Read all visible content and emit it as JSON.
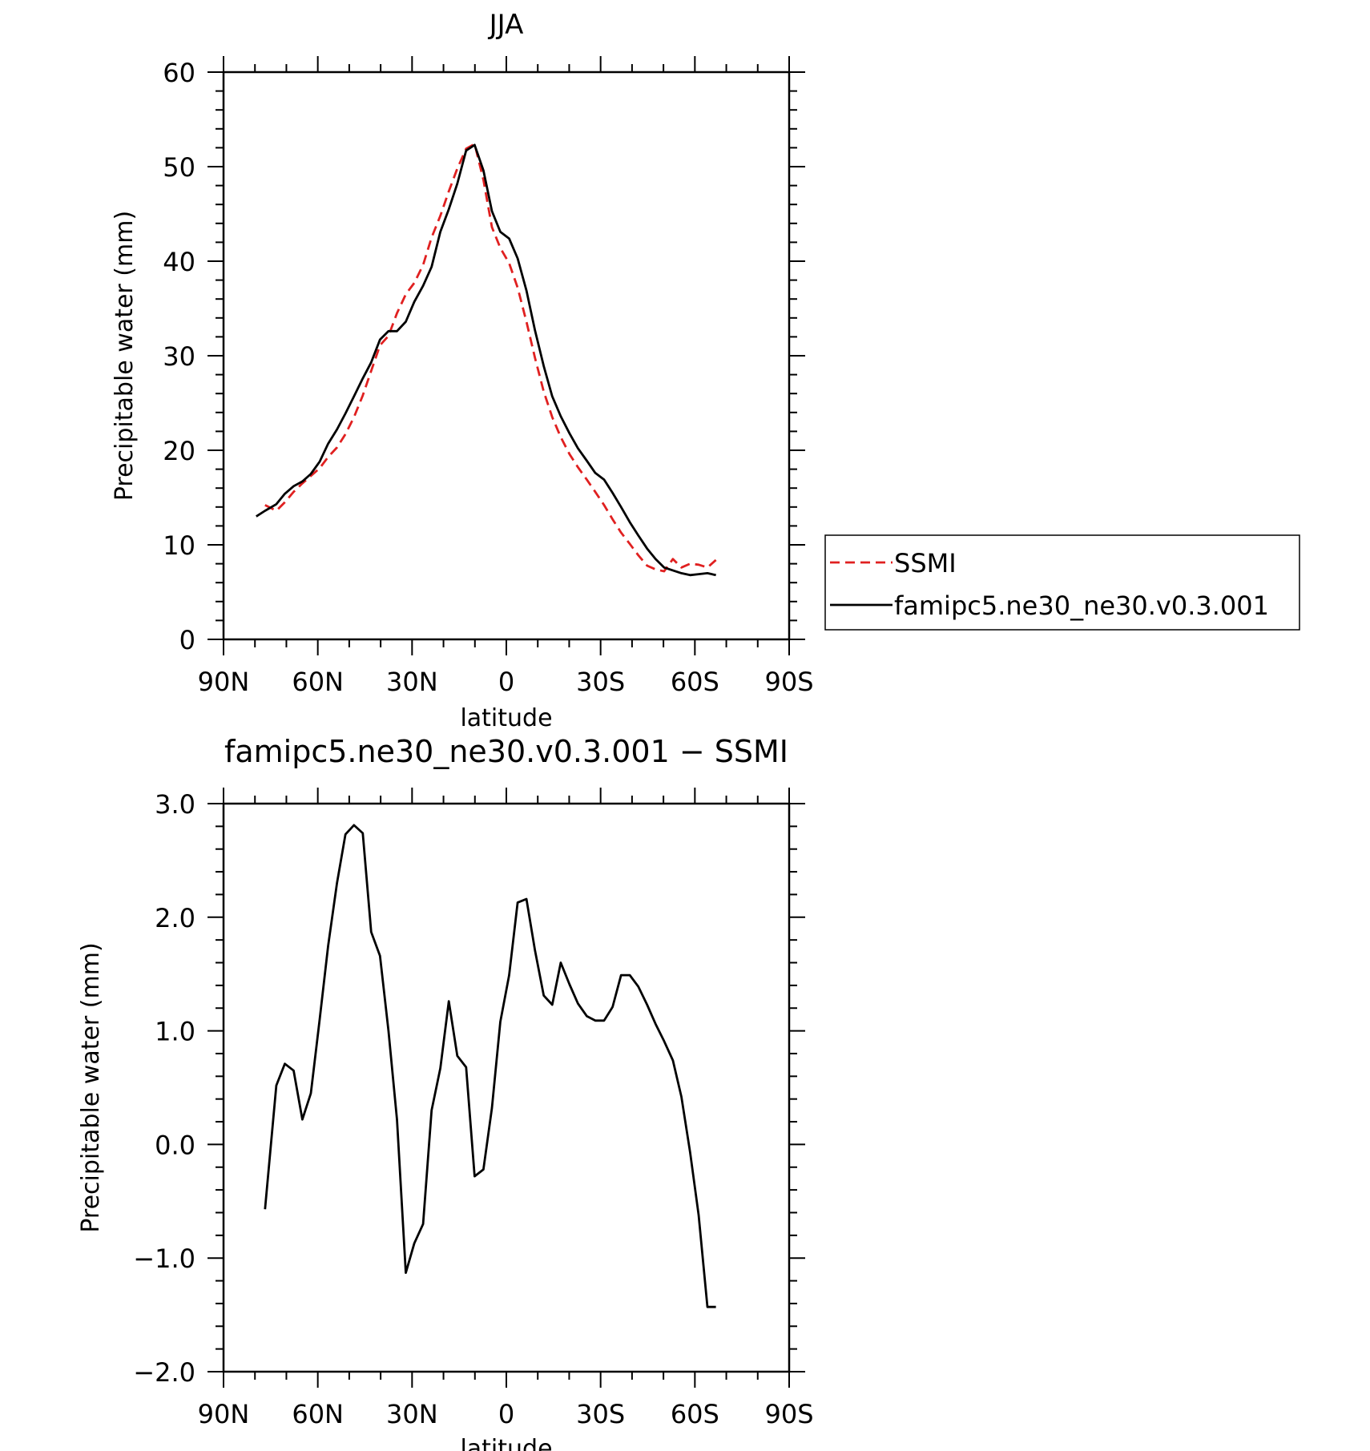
{
  "chart_data": [
    {
      "type": "line",
      "title": "JJA",
      "xlabel": "latitude",
      "ylabel": "Precipitable water (mm)",
      "x_reversed": true,
      "xlim": [
        90,
        -90
      ],
      "xticks": [
        {
          "value": 90,
          "label": "90N"
        },
        {
          "value": 60,
          "label": "60N"
        },
        {
          "value": 30,
          "label": "30N"
        },
        {
          "value": 0,
          "label": "0"
        },
        {
          "value": -30,
          "label": "30S"
        },
        {
          "value": -60,
          "label": "60S"
        },
        {
          "value": -90,
          "label": "90S"
        }
      ],
      "ylim": [
        0,
        60
      ],
      "yticks": [
        {
          "value": 0,
          "label": "0"
        },
        {
          "value": 10,
          "label": "10"
        },
        {
          "value": 20,
          "label": "20"
        },
        {
          "value": 30,
          "label": "30"
        },
        {
          "value": 40,
          "label": "40"
        },
        {
          "value": 50,
          "label": "50"
        },
        {
          "value": 60,
          "label": "60"
        }
      ],
      "legend_position": "right",
      "series": [
        {
          "name": "SSMI",
          "color": "#e02020",
          "style": "dashed",
          "x": [
            76.8,
            73.2,
            70.5,
            67.7,
            64.9,
            62.2,
            59.4,
            56.7,
            53.9,
            51.2,
            48.5,
            45.7,
            43.0,
            40.2,
            37.5,
            34.8,
            32.0,
            29.3,
            26.5,
            23.8,
            21.0,
            18.3,
            15.6,
            12.8,
            10.1,
            7.3,
            4.6,
            1.9,
            -0.9,
            -3.6,
            -6.4,
            -9.1,
            -11.9,
            -14.6,
            -17.3,
            -20.1,
            -22.8,
            -25.6,
            -28.3,
            -31.1,
            -33.8,
            -36.5,
            -39.3,
            -42.0,
            -44.8,
            -47.5,
            -50.2,
            -53.0,
            -55.7,
            -58.5,
            -61.2,
            -64.0,
            -66.7
          ],
          "y": [
            14.2,
            13.6,
            14.5,
            15.6,
            16.5,
            17.3,
            18.1,
            19.3,
            20.3,
            21.7,
            23.5,
            25.8,
            28.4,
            31.1,
            32.1,
            34.5,
            36.5,
            37.7,
            39.6,
            42.5,
            44.8,
            47.4,
            49.8,
            51.9,
            52.4,
            48.6,
            43.6,
            41.4,
            39.8,
            37.2,
            33.6,
            29.8,
            26.2,
            23.5,
            21.4,
            19.6,
            18.2,
            16.9,
            15.6,
            14.2,
            12.7,
            11.3,
            10.1,
            8.9,
            7.8,
            7.4,
            7.2,
            8.5,
            7.6,
            8.0,
            7.9,
            7.6,
            8.4
          ]
        },
        {
          "name": "famipc5.ne30_ne30.v0.3.001",
          "color": "#000000",
          "style": "solid",
          "x": [
            79.6,
            76.8,
            73.2,
            70.5,
            67.7,
            64.9,
            62.2,
            59.4,
            56.7,
            53.9,
            51.2,
            48.5,
            45.7,
            43.0,
            40.2,
            37.5,
            34.8,
            32.0,
            29.3,
            26.5,
            23.8,
            21.0,
            18.3,
            15.6,
            12.8,
            10.1,
            7.3,
            4.6,
            1.9,
            -0.9,
            -3.6,
            -6.4,
            -9.1,
            -11.9,
            -14.6,
            -17.3,
            -20.1,
            -22.8,
            -25.6,
            -28.3,
            -31.1,
            -33.8,
            -36.5,
            -39.3,
            -42.0,
            -44.8,
            -47.5,
            -50.2,
            -53.0,
            -55.7,
            -58.5,
            -61.2,
            -64.0,
            -66.7
          ],
          "y": [
            13.0,
            13.6,
            14.3,
            15.4,
            16.2,
            16.7,
            17.5,
            18.8,
            20.7,
            22.2,
            23.9,
            25.7,
            27.6,
            29.3,
            31.7,
            32.6,
            32.6,
            33.6,
            35.7,
            37.4,
            39.4,
            43.1,
            45.5,
            48.2,
            51.7,
            52.3,
            49.6,
            45.3,
            43.1,
            42.4,
            40.3,
            36.9,
            32.7,
            28.9,
            25.7,
            23.6,
            21.8,
            20.2,
            18.9,
            17.6,
            16.9,
            15.5,
            14.0,
            12.4,
            11.0,
            9.6,
            8.5,
            7.6,
            7.3,
            7.0,
            6.8,
            6.9,
            7.0,
            6.8
          ]
        }
      ]
    },
    {
      "type": "line",
      "title": "famipc5.ne30_ne30.v0.3.001 − SSMI",
      "xlabel": "latitude",
      "ylabel": "Precipitable water (mm)",
      "x_reversed": true,
      "xlim": [
        90,
        -90
      ],
      "xticks": [
        {
          "value": 90,
          "label": "90N"
        },
        {
          "value": 60,
          "label": "60N"
        },
        {
          "value": 30,
          "label": "30N"
        },
        {
          "value": 0,
          "label": "0"
        },
        {
          "value": -30,
          "label": "30S"
        },
        {
          "value": -60,
          "label": "60S"
        },
        {
          "value": -90,
          "label": "90S"
        }
      ],
      "ylim": [
        -2.0,
        3.0
      ],
      "yticks": [
        {
          "value": -2.0,
          "label": "−2.0"
        },
        {
          "value": -1.0,
          "label": "−1.0"
        },
        {
          "value": 0.0,
          "label": "0.0"
        },
        {
          "value": 1.0,
          "label": "1.0"
        },
        {
          "value": 2.0,
          "label": "2.0"
        },
        {
          "value": 3.0,
          "label": "3.0"
        }
      ],
      "series": [
        {
          "color": "#000000",
          "style": "solid",
          "x": [
            76.8,
            73.2,
            70.5,
            67.7,
            64.9,
            62.2,
            59.4,
            56.7,
            53.9,
            51.2,
            48.5,
            45.7,
            43.0,
            40.2,
            37.5,
            34.8,
            32.0,
            29.3,
            26.5,
            23.8,
            21.0,
            18.3,
            15.6,
            12.8,
            10.1,
            7.3,
            4.6,
            1.9,
            -0.9,
            -3.6,
            -6.4,
            -9.1,
            -11.9,
            -14.6,
            -17.3,
            -20.1,
            -22.8,
            -25.6,
            -28.3,
            -31.1,
            -33.8,
            -36.5,
            -39.3,
            -42.0,
            -44.8,
            -47.5,
            -50.2,
            -53.0,
            -55.7,
            -58.5,
            -61.2,
            -64.0,
            -66.7
          ],
          "y": [
            -0.57,
            0.52,
            0.71,
            0.65,
            0.22,
            0.45,
            1.1,
            1.75,
            2.3,
            2.73,
            2.81,
            2.74,
            1.87,
            1.66,
            1.0,
            0.22,
            -1.13,
            -0.87,
            -0.7,
            0.3,
            0.67,
            1.26,
            0.78,
            0.68,
            -0.28,
            -0.22,
            0.32,
            1.08,
            1.49,
            2.13,
            2.16,
            1.71,
            1.31,
            1.23,
            1.6,
            1.41,
            1.24,
            1.13,
            1.09,
            1.09,
            1.21,
            1.49,
            1.49,
            1.39,
            1.23,
            1.06,
            0.91,
            0.74,
            0.42,
            -0.07,
            -0.62,
            -1.43,
            -1.43
          ]
        }
      ]
    }
  ]
}
